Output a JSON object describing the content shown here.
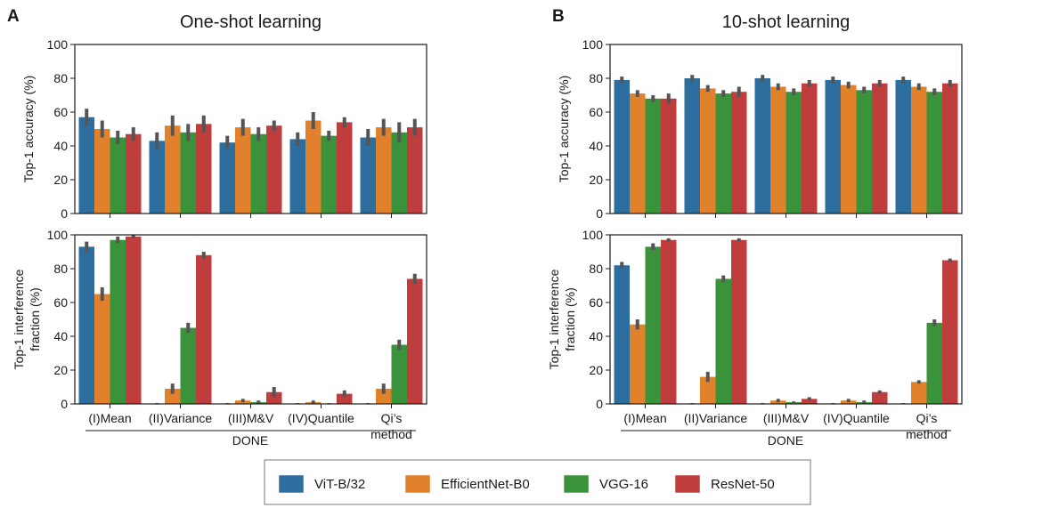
{
  "colors": {
    "series": [
      "#2e6e9e",
      "#e1812c",
      "#3a923a",
      "#c03d3e"
    ],
    "error_bar": "#555555",
    "axis": "#1a1a1a"
  },
  "legend": {
    "entries": [
      "ViT-B/32",
      "EfficientNet-B0",
      "VGG-16",
      "ResNet-50"
    ]
  },
  "group_label": "DONE",
  "panels": [
    {
      "letter": "A",
      "title": "One-shot learning"
    },
    {
      "letter": "B",
      "title": "10-shot learning"
    }
  ],
  "chart_data": [
    {
      "type": "bar",
      "panel": "A",
      "title": "One-shot learning",
      "ylabel": "Top-1 accuracy (%)",
      "ylim": [
        0,
        100
      ],
      "yticks": [
        0,
        20,
        40,
        60,
        80,
        100
      ],
      "categories": [
        "(I)Mean",
        "(II)Variance",
        "(III)M&V",
        "(IV)Quantile",
        "Qi's method"
      ],
      "show_xlabels": false,
      "series": [
        {
          "name": "ViT-B/32",
          "values": [
            57,
            43,
            42,
            44,
            45
          ],
          "err": [
            5,
            5,
            4,
            4,
            5
          ]
        },
        {
          "name": "EfficientNet-B0",
          "values": [
            50,
            52,
            51,
            55,
            51
          ],
          "err": [
            5,
            6,
            5,
            5,
            5
          ]
        },
        {
          "name": "VGG-16",
          "values": [
            45,
            48,
            47,
            46,
            48
          ],
          "err": [
            4,
            5,
            4,
            3,
            6
          ]
        },
        {
          "name": "ResNet-50",
          "values": [
            47,
            53,
            52,
            54,
            51
          ],
          "err": [
            4,
            5,
            3,
            3,
            5
          ]
        }
      ]
    },
    {
      "type": "bar",
      "panel": "A",
      "title": "",
      "ylabel": [
        "Top-1 interference",
        "fraction (%)"
      ],
      "ylim": [
        0,
        100
      ],
      "yticks": [
        0,
        20,
        40,
        60,
        80,
        100
      ],
      "categories": [
        "(I)Mean",
        "(II)Variance",
        "(III)M&V",
        "(IV)Quantile",
        "Qi's method"
      ],
      "xlabels": [
        [
          "(I)Mean"
        ],
        [
          "(II)Variance"
        ],
        [
          "(III)M&V"
        ],
        [
          "(IV)Quantile"
        ],
        [
          "Qi’s",
          "method"
        ]
      ],
      "show_xlabels": true,
      "series": [
        {
          "name": "ViT-B/32",
          "values": [
            93,
            0,
            0,
            0,
            0
          ],
          "err": [
            3,
            0.5,
            0.5,
            0.5,
            0.5
          ]
        },
        {
          "name": "EfficientNet-B0",
          "values": [
            65,
            9,
            2,
            1,
            9
          ],
          "err": [
            4,
            3,
            1,
            1,
            3
          ]
        },
        {
          "name": "VGG-16",
          "values": [
            97,
            45,
            1,
            0,
            35
          ],
          "err": [
            2,
            3,
            1,
            0.5,
            3
          ]
        },
        {
          "name": "ResNet-50",
          "values": [
            99,
            88,
            7,
            6,
            74
          ],
          "err": [
            1,
            2,
            3,
            2,
            3
          ]
        }
      ]
    },
    {
      "type": "bar",
      "panel": "B",
      "title": "10-shot learning",
      "ylabel": "Top-1 accuracy (%)",
      "ylim": [
        0,
        100
      ],
      "yticks": [
        0,
        20,
        40,
        60,
        80,
        100
      ],
      "categories": [
        "(I)Mean",
        "(II)Variance",
        "(III)M&V",
        "(IV)Quantile",
        "Qi's method"
      ],
      "show_xlabels": false,
      "series": [
        {
          "name": "ViT-B/32",
          "values": [
            79,
            80,
            80,
            79,
            79
          ],
          "err": [
            2,
            2,
            2,
            2,
            2
          ]
        },
        {
          "name": "EfficientNet-B0",
          "values": [
            71,
            74,
            75,
            76,
            75
          ],
          "err": [
            2,
            2,
            2,
            2,
            2
          ]
        },
        {
          "name": "VGG-16",
          "values": [
            68,
            71,
            72,
            73,
            72
          ],
          "err": [
            2,
            2,
            2,
            2,
            2
          ]
        },
        {
          "name": "ResNet-50",
          "values": [
            68,
            72,
            77,
            77,
            77
          ],
          "err": [
            3,
            3,
            2,
            2,
            2
          ]
        }
      ]
    },
    {
      "type": "bar",
      "panel": "B",
      "title": "",
      "ylabel": [
        "Top-1 interference",
        "fraction (%)"
      ],
      "ylim": [
        0,
        100
      ],
      "yticks": [
        0,
        20,
        40,
        60,
        80,
        100
      ],
      "categories": [
        "(I)Mean",
        "(II)Variance",
        "(III)M&V",
        "(IV)Quantile",
        "Qi's method"
      ],
      "xlabels": [
        [
          "(I)Mean"
        ],
        [
          "(II)Variance"
        ],
        [
          "(III)M&V"
        ],
        [
          "(IV)Quantile"
        ],
        [
          "Qi’s",
          "method"
        ]
      ],
      "show_xlabels": true,
      "series": [
        {
          "name": "ViT-B/32",
          "values": [
            82,
            0,
            0,
            0,
            0
          ],
          "err": [
            2,
            0.5,
            0.5,
            0.5,
            0.5
          ]
        },
        {
          "name": "EfficientNet-B0",
          "values": [
            47,
            16,
            2,
            2,
            13
          ],
          "err": [
            3,
            3,
            1,
            1,
            1
          ]
        },
        {
          "name": "VGG-16",
          "values": [
            93,
            74,
            1,
            1,
            48
          ],
          "err": [
            2,
            2,
            0.5,
            1,
            2
          ]
        },
        {
          "name": "ResNet-50",
          "values": [
            97,
            97,
            3,
            7,
            85
          ],
          "err": [
            1,
            1,
            1,
            1,
            1
          ]
        }
      ]
    }
  ]
}
